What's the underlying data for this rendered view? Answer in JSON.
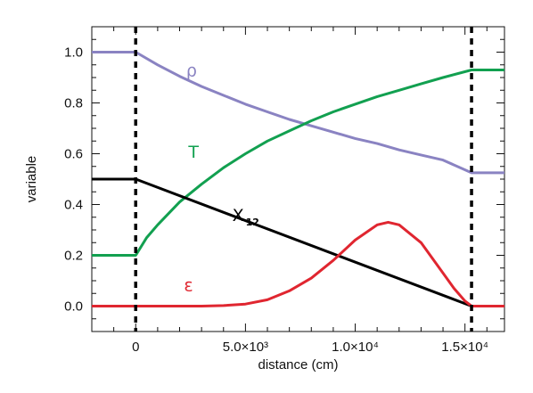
{
  "chart_data": {
    "type": "line",
    "title": "",
    "xlabel": "distance (cm)",
    "ylabel": "variable",
    "xlim": [
      -2000,
      16800
    ],
    "ylim": [
      -0.1,
      1.1
    ],
    "x_ticks": [
      {
        "value": 0,
        "label": "0"
      },
      {
        "value": 5000,
        "label": "5.0×10³"
      },
      {
        "value": 10000,
        "label": "1.0×10⁴"
      },
      {
        "value": 15000,
        "label": "1.5×10⁴"
      }
    ],
    "y_ticks": [
      {
        "value": 0.0,
        "label": "0.0"
      },
      {
        "value": 0.2,
        "label": "0.2"
      },
      {
        "value": 0.4,
        "label": "0.4"
      },
      {
        "value": 0.6,
        "label": "0.6"
      },
      {
        "value": 0.8,
        "label": "0.8"
      },
      {
        "value": 1.0,
        "label": "1.0"
      }
    ],
    "vertical_lines": [
      0,
      15300
    ],
    "series": [
      {
        "name": "ρ",
        "color": "#8a83c2",
        "x": [
          -2000,
          0,
          1000,
          2000,
          3000,
          4000,
          5000,
          6000,
          7000,
          8000,
          9000,
          10000,
          11000,
          12000,
          13000,
          14000,
          15300,
          16800
        ],
        "y": [
          1.0,
          1.0,
          0.95,
          0.905,
          0.865,
          0.83,
          0.795,
          0.765,
          0.735,
          0.71,
          0.685,
          0.66,
          0.64,
          0.615,
          0.595,
          0.575,
          0.525,
          0.525
        ]
      },
      {
        "name": "T",
        "color": "#12a050",
        "x": [
          -2000,
          0,
          500,
          1000,
          2000,
          3000,
          4000,
          5000,
          6000,
          7000,
          8000,
          9000,
          10000,
          11000,
          12000,
          13000,
          14000,
          15300,
          16800
        ],
        "y": [
          0.2,
          0.2,
          0.27,
          0.32,
          0.41,
          0.48,
          0.545,
          0.6,
          0.65,
          0.69,
          0.73,
          0.765,
          0.795,
          0.825,
          0.85,
          0.875,
          0.9,
          0.93,
          0.93
        ]
      },
      {
        "name": "X",
        "subscript": "12",
        "color": "#000000",
        "x": [
          -2000,
          0,
          15300,
          16800
        ],
        "y": [
          0.5,
          0.5,
          0.0,
          0.0
        ]
      },
      {
        "name": "ε",
        "color": "#e02630",
        "x": [
          -2000,
          0,
          3000,
          4000,
          5000,
          6000,
          7000,
          8000,
          9000,
          10000,
          11000,
          11500,
          12000,
          13000,
          14000,
          14500,
          15000,
          15300,
          16800
        ],
        "y": [
          0.0,
          0.0,
          0.0,
          0.002,
          0.008,
          0.025,
          0.06,
          0.11,
          0.18,
          0.26,
          0.32,
          0.33,
          0.32,
          0.25,
          0.13,
          0.07,
          0.02,
          0.0,
          0.0
        ]
      }
    ],
    "annotations": [
      {
        "text": "ρ",
        "series": "ρ",
        "x": 2300,
        "y": 0.905
      },
      {
        "text": "T",
        "series": "T",
        "x": 2400,
        "y": 0.585
      },
      {
        "text": "X",
        "sub": "12",
        "series": "X",
        "x": 4400,
        "y": 0.335
      },
      {
        "text": "ε",
        "series": "ε",
        "x": 2200,
        "y": 0.06
      }
    ]
  }
}
